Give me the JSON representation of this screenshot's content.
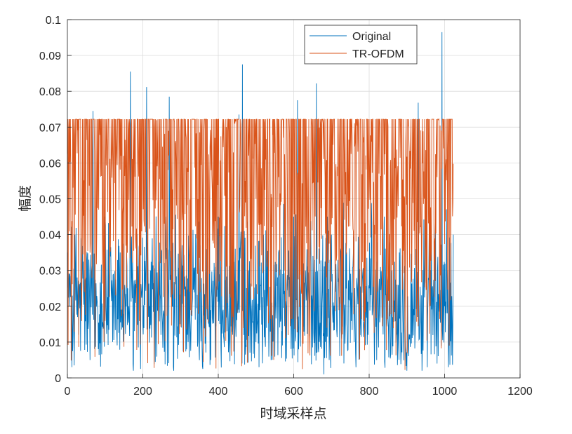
{
  "chart_data": {
    "type": "line",
    "xlabel": "时域采样点",
    "ylabel": "幅度",
    "xlim": [
      0,
      1200
    ],
    "ylim": [
      0,
      0.1
    ],
    "xticks": [
      0,
      200,
      400,
      600,
      800,
      1000,
      1200
    ],
    "yticks": [
      0,
      0.01,
      0.02,
      0.03,
      0.04,
      0.05,
      0.06,
      0.07,
      0.08,
      0.09,
      0.1
    ],
    "xtick_labels": [
      "0",
      "200",
      "400",
      "600",
      "800",
      "1000",
      "1200"
    ],
    "ytick_labels": [
      "0",
      "0.01",
      "0.02",
      "0.03",
      "0.04",
      "0.05",
      "0.06",
      "0.07",
      "0.08",
      "0.09",
      "0.1"
    ],
    "grid": true,
    "legend": "top-right",
    "n_samples": 1024,
    "series": [
      {
        "name": "Original",
        "color": "#0072BD",
        "x": [
          0,
          5,
          12,
          20,
          30,
          45,
          60,
          68,
          80,
          100,
          120,
          140,
          160,
          167,
          175,
          185,
          200,
          210,
          220,
          240,
          260,
          270,
          282,
          300,
          320,
          340,
          360,
          380,
          400,
          420,
          440,
          455,
          464,
          480,
          500,
          520,
          540,
          560,
          580,
          600,
          610,
          630,
          660,
          680,
          690,
          700,
          720,
          740,
          760,
          780,
          800,
          820,
          840,
          860,
          880,
          900,
          930,
          940,
          960,
          980,
          993,
          1000,
          1010,
          1023
        ],
        "y": [
          0.035,
          0.02,
          0.003,
          0.04,
          0.012,
          0.03,
          0.005,
          0.0745,
          0.02,
          0.045,
          0.01,
          0.035,
          0.025,
          0.0855,
          0.002,
          0.04,
          0.015,
          0.0812,
          0.03,
          0.02,
          0.045,
          0.0785,
          0.002,
          0.035,
          0.01,
          0.04,
          0.025,
          0.005,
          0.045,
          0.02,
          0.035,
          0.0735,
          0.0875,
          0.03,
          0.01,
          0.04,
          0.005,
          0.035,
          0.02,
          0.045,
          0.0775,
          0.03,
          0.0822,
          0.001,
          0.045,
          0.04,
          0.02,
          0.035,
          0.01,
          0.04,
          0.025,
          0.005,
          0.045,
          0.03,
          0.035,
          0.002,
          0.0768,
          0.002,
          0.03,
          0.004,
          0.0965,
          0.02,
          0.003,
          0.04
        ]
      },
      {
        "name": "TR-OFDM",
        "color": "#D95319",
        "x": [
          0,
          1023
        ],
        "y": [
          0.0722,
          0.0722
        ],
        "y_max": 0.0722,
        "y_min": 0.0016
      }
    ]
  }
}
